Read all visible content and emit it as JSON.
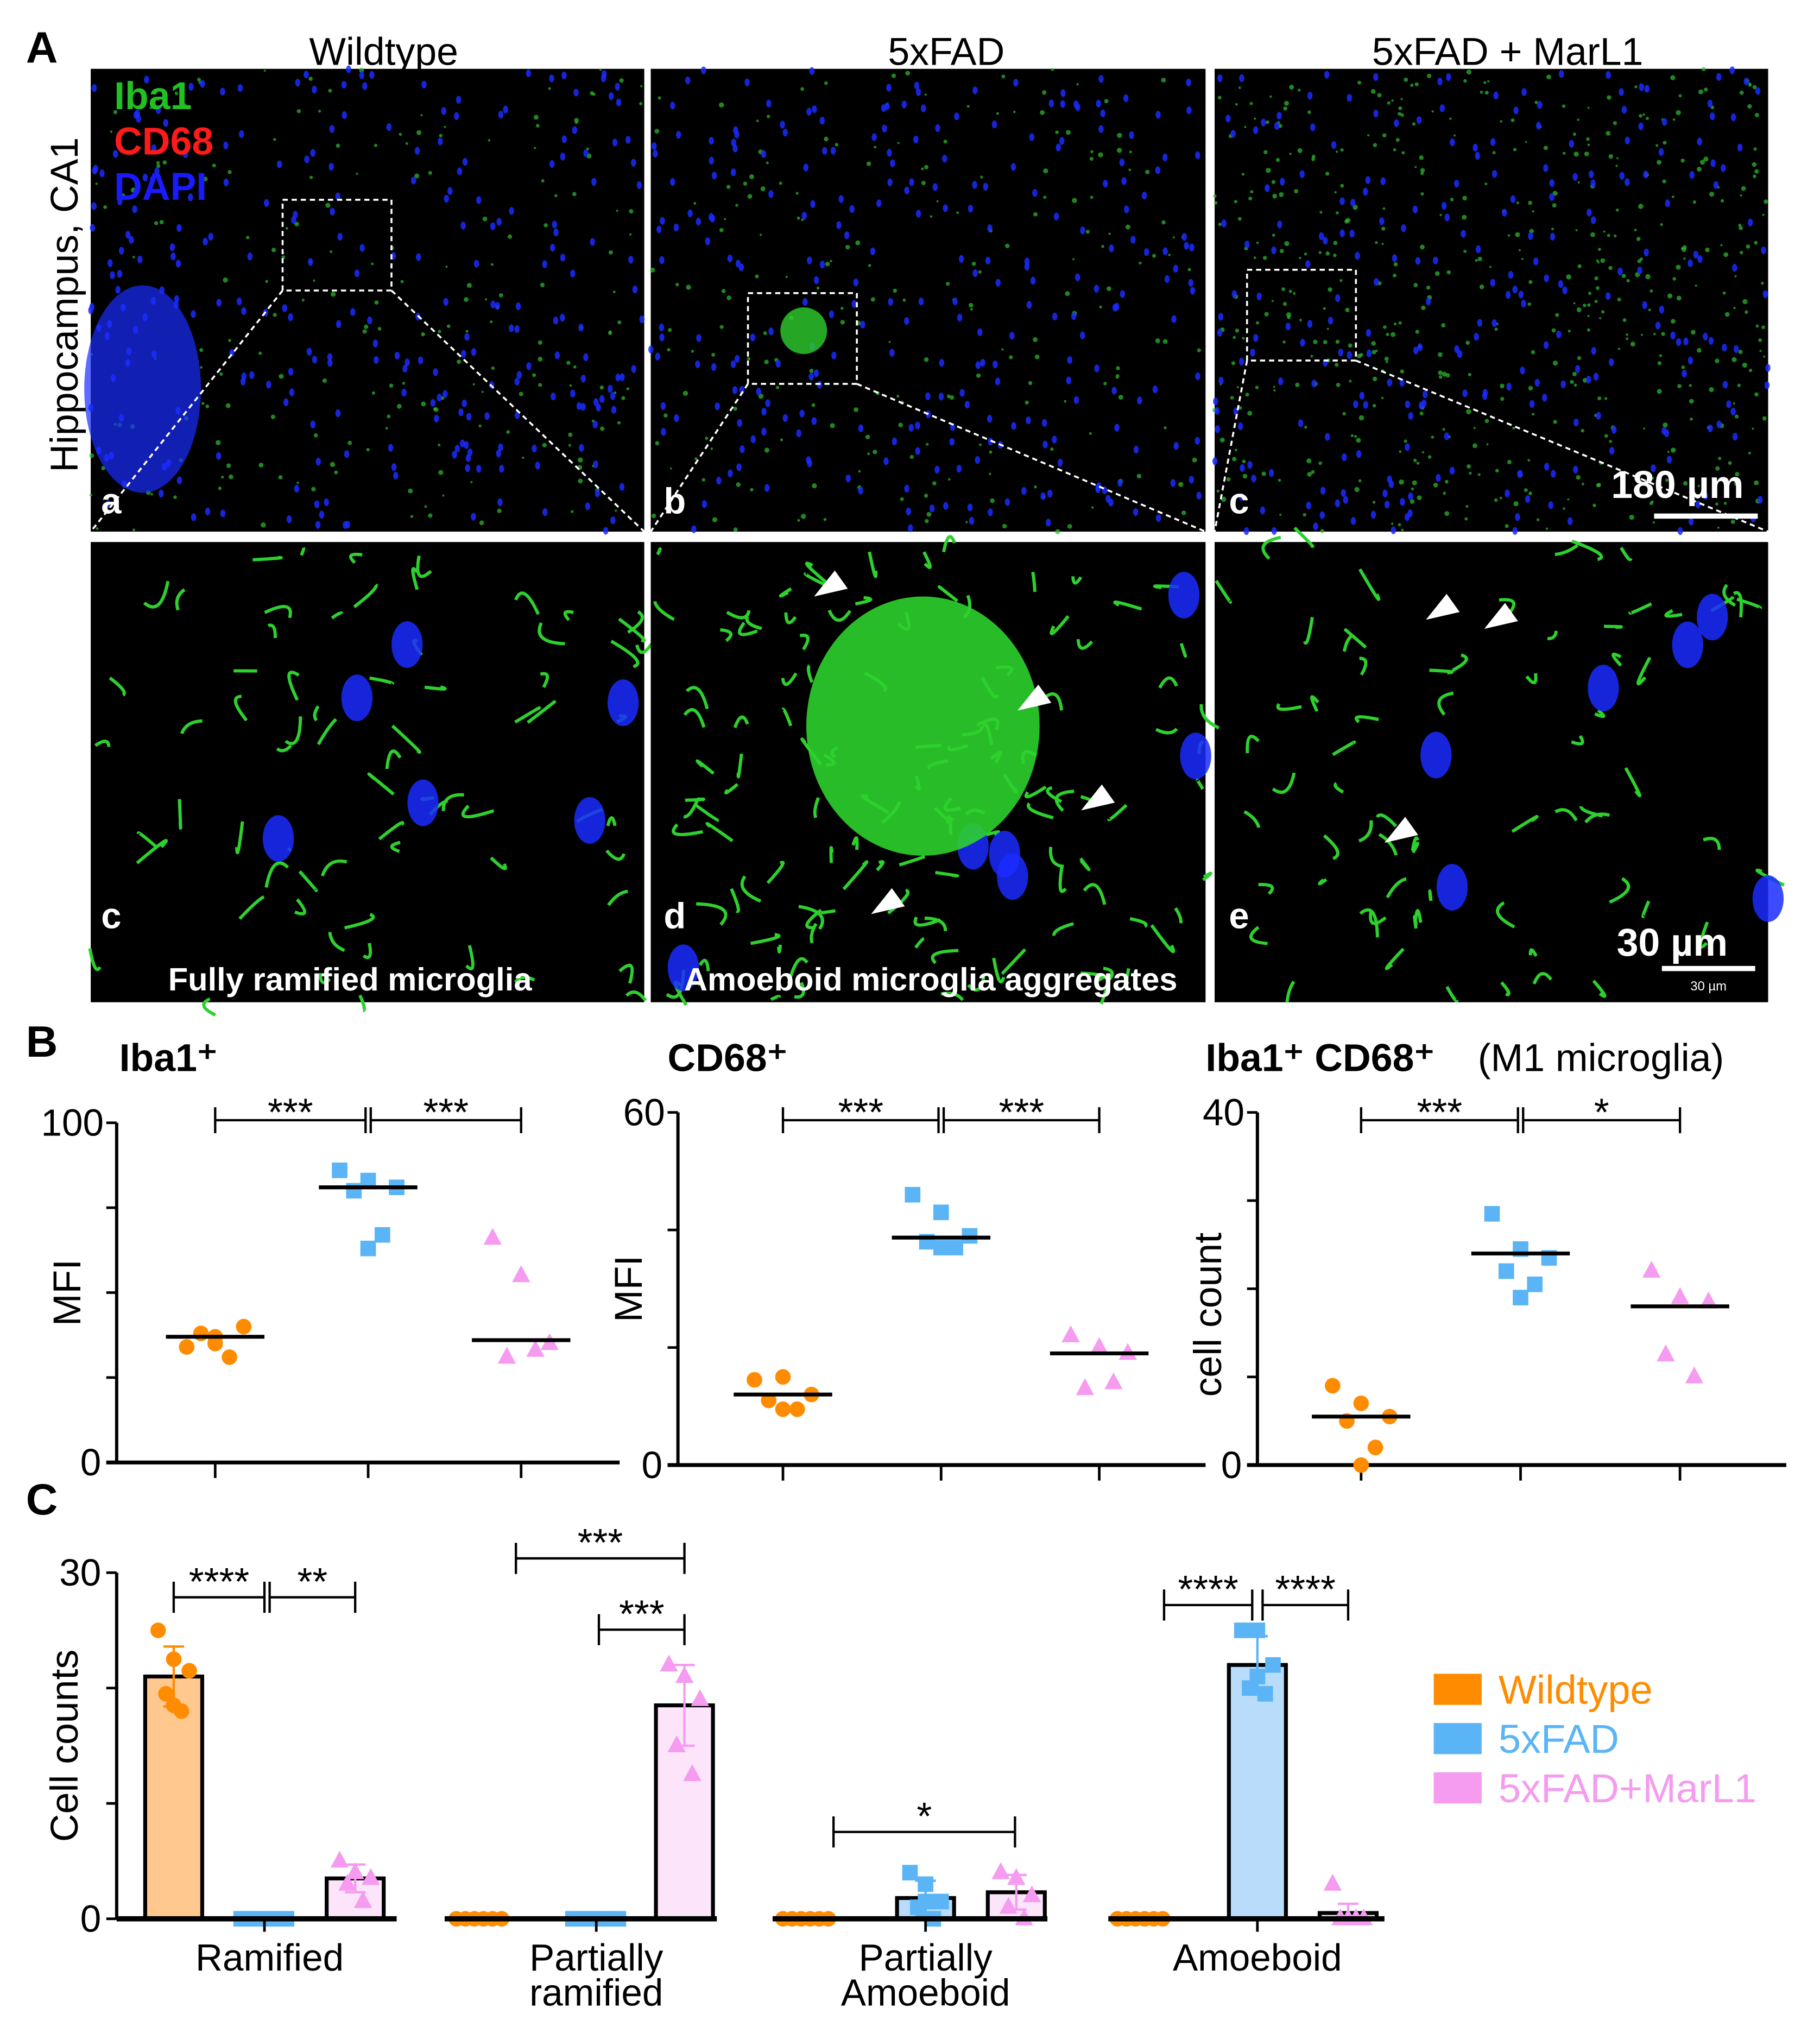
{
  "panel_labels": {
    "A": "A",
    "B": "B",
    "C": "C"
  },
  "panel_a": {
    "columns": [
      "Wildtype",
      "5xFAD",
      "5xFAD + MarL1"
    ],
    "row_label": "Hippocampus, CA1",
    "stain_legend": [
      {
        "label": "Iba1",
        "color": "#22c022"
      },
      {
        "label": "CD68",
        "color": "#ff1a1a"
      },
      {
        "label": "DAPI",
        "color": "#1a1aff"
      }
    ],
    "top_letters": [
      "a",
      "b",
      "c"
    ],
    "bottom_letters": [
      "c",
      "d",
      "e"
    ],
    "bottom_captions": [
      "Fully ramified microglia",
      "Amoeboid microglia aggregates",
      ""
    ],
    "scale_bar_top": "180 µm",
    "scale_bar_bottom": "30 µm",
    "scale_bar_bottom_small": "30 µm"
  },
  "chart_data": [
    {
      "type": "scatter",
      "title": "Iba1⁺",
      "ylabel": "MFI",
      "ylim": [
        0,
        100
      ],
      "yticks": [
        0,
        25,
        50,
        75,
        100
      ],
      "ytick_labels": [
        "0",
        "100"
      ],
      "groups": [
        "Wildtype",
        "5xFAD",
        "5xFAD+MarL1"
      ],
      "points": [
        [
          34,
          37,
          40,
          38,
          31,
          35
        ],
        [
          86,
          83,
          81,
          80,
          67,
          63
        ],
        [
          66,
          55,
          35,
          31,
          33
        ]
      ],
      "medians": [
        37,
        81,
        36
      ],
      "comparisons": [
        {
          "from": 0,
          "to": 1,
          "label": "***"
        },
        {
          "from": 1,
          "to": 2,
          "label": "***"
        }
      ]
    },
    {
      "type": "scatter",
      "title": "CD68⁺",
      "ylabel": "MFI",
      "ylim": [
        0,
        60
      ],
      "yticks": [
        0,
        20,
        40,
        60
      ],
      "ytick_labels": [
        "0",
        "60"
      ],
      "groups": [
        "Wildtype",
        "5xFAD",
        "5xFAD+MarL1"
      ],
      "points": [
        [
          14.5,
          15,
          12,
          11,
          9.5,
          9.5
        ],
        [
          46,
          43,
          39,
          38,
          37,
          37
        ],
        [
          22,
          20,
          19,
          13,
          14
        ]
      ],
      "medians": [
        12,
        38.7,
        19
      ],
      "comparisons": [
        {
          "from": 0,
          "to": 1,
          "label": "***"
        },
        {
          "from": 1,
          "to": 2,
          "label": "***"
        }
      ]
    },
    {
      "type": "scatter",
      "title": "Iba1⁺ CD68⁺",
      "title_suffix": "(M1 microglia)",
      "ylabel": "cell count",
      "ylim": [
        0,
        40
      ],
      "yticks": [
        0,
        10,
        20,
        30,
        40
      ],
      "ytick_labels": [
        "0",
        "40"
      ],
      "groups": [
        "Wildtype",
        "5xFAD",
        "5xFAD+MarL1"
      ],
      "points": [
        [
          9,
          7,
          5.5,
          5,
          2,
          0
        ],
        [
          28.5,
          24.5,
          23.5,
          22,
          20.5,
          19
        ],
        [
          22,
          19,
          18.5,
          12.5,
          10
        ]
      ],
      "medians": [
        5.5,
        24,
        18
      ],
      "comparisons": [
        {
          "from": 0,
          "to": 1,
          "label": "***"
        },
        {
          "from": 1,
          "to": 2,
          "label": "*"
        }
      ]
    },
    {
      "type": "bar",
      "ylabel": "Cell counts",
      "ylim": [
        0,
        30
      ],
      "yticks": [
        0,
        10,
        20,
        30
      ],
      "ytick_labels": [
        "0",
        "30"
      ],
      "categories": [
        "Ramified",
        "Partially\nramified",
        "Partially\nAmoeboid",
        "Amoeboid"
      ],
      "series": [
        {
          "name": "Wildtype",
          "color": "#ff8c00",
          "fill": "#ffc88f",
          "values": [
            21,
            0,
            0,
            0
          ],
          "sd": [
            2.6,
            0,
            0,
            0
          ],
          "points": [
            [
              25,
              22.5,
              21.5,
              19.5,
              18,
              18.5
            ],
            [
              0,
              0,
              0,
              0,
              0,
              0
            ],
            [
              0,
              0,
              0,
              0,
              0,
              0
            ],
            [
              0,
              0,
              0,
              0,
              0,
              0
            ]
          ]
        },
        {
          "name": "5xFAD",
          "color": "#5ab4f5",
          "fill": "#b8dcfa",
          "values": [
            0,
            0,
            1.8,
            22
          ],
          "sd": [
            0,
            0,
            1.5,
            2.5
          ],
          "points": [
            [
              0,
              0,
              0,
              0,
              0,
              0
            ],
            [
              0,
              0,
              0,
              0,
              0,
              0
            ],
            [
              4,
              3,
              1.5,
              1,
              0,
              1.5
            ],
            [
              25,
              25,
              22,
              20,
              19.5,
              21
            ]
          ]
        },
        {
          "name": "5xFAD+MarL1",
          "color": "#f59bf0",
          "fill": "#fce4fb",
          "values": [
            3.5,
            18.5,
            2.3,
            0.5
          ],
          "sd": [
            1.2,
            3.5,
            1.5,
            0.8
          ],
          "points": [
            [
              5,
              4,
              3.5,
              3,
              1.5
            ],
            [
              22,
              21,
              19,
              15,
              12.5
            ],
            [
              4,
              3.5,
              2,
              1,
              0
            ],
            [
              3,
              0,
              0,
              0,
              0
            ]
          ]
        }
      ],
      "comparisons": [
        {
          "category": 0,
          "from": 0,
          "to": 1,
          "label": "****"
        },
        {
          "category": 0,
          "from": 1,
          "to": 2,
          "label": "**"
        },
        {
          "category": 1,
          "from": 0,
          "to": 2,
          "label": "***"
        },
        {
          "category": 1,
          "from": 1,
          "to": 2,
          "label": "***"
        },
        {
          "category": 2,
          "from": 0,
          "to": 2,
          "label": "*"
        },
        {
          "category": 3,
          "from": 0,
          "to": 1,
          "label": "****"
        },
        {
          "category": 3,
          "from": 1,
          "to": 2,
          "label": "****"
        }
      ],
      "legend": [
        "Wildtype",
        "5xFAD",
        "5xFAD+MarL1"
      ],
      "legend_position": "right"
    }
  ]
}
